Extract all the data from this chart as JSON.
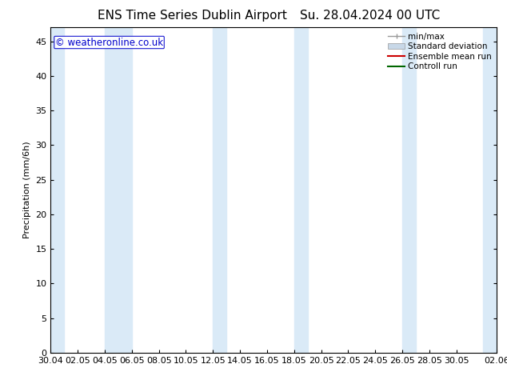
{
  "title_left": "ENS Time Series Dublin Airport",
  "title_right": "Su. 28.04.2024 00 UTC",
  "ylabel": "Precipitation (mm/6h)",
  "watermark": "© weatheronline.co.uk",
  "watermark_color": "#0000cc",
  "background_color": "#ffffff",
  "plot_bg_color": "#ffffff",
  "ylim": [
    0,
    47
  ],
  "yticks": [
    0,
    5,
    10,
    15,
    20,
    25,
    30,
    35,
    40,
    45
  ],
  "x_start": 0,
  "x_end": 33,
  "xtick_labels": [
    "30.04",
    "02.05",
    "04.05",
    "06.05",
    "08.05",
    "10.05",
    "12.05",
    "14.05",
    "16.05",
    "18.05",
    "20.05",
    "22.05",
    "24.05",
    "26.05",
    "28.05",
    "30.05",
    "02.06"
  ],
  "xtick_positions": [
    0,
    2,
    4,
    6,
    8,
    10,
    12,
    14,
    16,
    18,
    20,
    22,
    24,
    26,
    28,
    30,
    33
  ],
  "shaded_bands": [
    [
      0,
      1
    ],
    [
      4,
      6
    ],
    [
      12,
      13
    ],
    [
      18,
      19
    ],
    [
      26,
      27
    ],
    [
      32,
      33
    ]
  ],
  "shade_color": "#daeaf7",
  "title_fontsize": 11,
  "axis_fontsize": 8,
  "tick_fontsize": 8,
  "legend_fontsize": 7.5,
  "watermark_fontsize": 8.5
}
